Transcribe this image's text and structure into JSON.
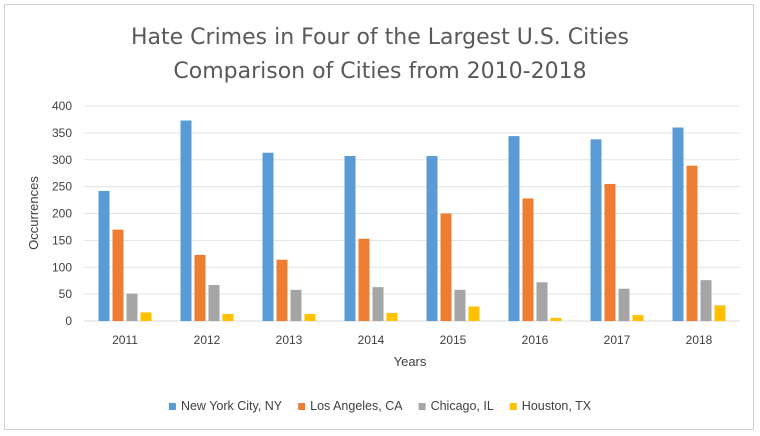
{
  "chart_data": {
    "type": "bar",
    "title": [
      "Hate Crimes in Four of the Largest U.S. Cities",
      "Comparison of Cities from 2010-2018"
    ],
    "xlabel": "Years",
    "ylabel": "Occurrences",
    "ylim": [
      0,
      400
    ],
    "yticks": [
      "0",
      "50",
      "100",
      "150",
      "200",
      "250",
      "300",
      "350",
      "400"
    ],
    "categories": [
      "2011",
      "2012",
      "2013",
      "2014",
      "2015",
      "2016",
      "2017",
      "2018"
    ],
    "grid": true,
    "legend_position": "bottom",
    "series": [
      {
        "name": "New York City, NY",
        "color": "#5B9BD5",
        "values": [
          242,
          373,
          313,
          307,
          307,
          344,
          338,
          360
        ]
      },
      {
        "name": "Los Angeles, CA",
        "color": "#ED7D31",
        "values": [
          170,
          123,
          114,
          153,
          200,
          228,
          255,
          289
        ]
      },
      {
        "name": "Chicago, IL",
        "color": "#A5A5A5",
        "values": [
          51,
          67,
          58,
          63,
          58,
          72,
          60,
          76
        ]
      },
      {
        "name": "Houston, TX",
        "color": "#FFC000",
        "values": [
          16,
          13,
          13,
          15,
          27,
          6,
          11,
          29
        ]
      }
    ]
  }
}
